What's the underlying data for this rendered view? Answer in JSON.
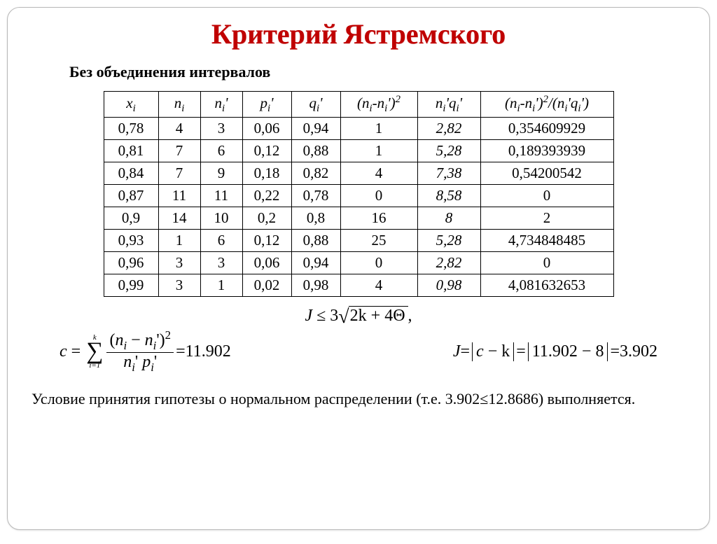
{
  "title": "Критерий Ястремского",
  "subtitle": "Без объединения интервалов",
  "table": {
    "headers": {
      "x": "xᵢ",
      "n": "nᵢ",
      "np": "nᵢ'",
      "p": "pᵢ'",
      "q": "qᵢ'",
      "d": "(nᵢ-nᵢ')²",
      "nq": "nᵢ'qᵢ'",
      "r": "(nᵢ-nᵢ')²/(nᵢ'qᵢ')"
    },
    "rows": [
      {
        "x": "0,78",
        "n": "4",
        "np": "3",
        "p": "0,06",
        "q": "0,94",
        "d": "1",
        "nq": "2,82",
        "r": "0,354609929"
      },
      {
        "x": "0,81",
        "n": "7",
        "np": "6",
        "p": "0,12",
        "q": "0,88",
        "d": "1",
        "nq": "5,28",
        "r": "0,189393939"
      },
      {
        "x": "0,84",
        "n": "7",
        "np": "9",
        "p": "0,18",
        "q": "0,82",
        "d": "4",
        "nq": "7,38",
        "r": "0,54200542"
      },
      {
        "x": "0,87",
        "n": "11",
        "np": "11",
        "p": "0,22",
        "q": "0,78",
        "d": "0",
        "nq": "8,58",
        "r": "0"
      },
      {
        "x": "0,9",
        "n": "14",
        "np": "10",
        "p": "0,2",
        "q": "0,8",
        "d": "16",
        "nq": "8",
        "r": "2"
      },
      {
        "x": "0,93",
        "n": "1",
        "np": "6",
        "p": "0,12",
        "q": "0,88",
        "d": "25",
        "nq": "5,28",
        "r": "4,734848485"
      },
      {
        "x": "0,96",
        "n": "3",
        "np": "3",
        "p": "0,06",
        "q": "0,94",
        "d": "0",
        "nq": "2,82",
        "r": "0"
      },
      {
        "x": "0,99",
        "n": "3",
        "np": "1",
        "p": "0,02",
        "q": "0,98",
        "d": "4",
        "nq": "0,98",
        "r": "4,081632653"
      }
    ],
    "col_widths": {
      "x": 78,
      "n": 60,
      "np": 60,
      "p": 70,
      "q": 70,
      "d": 110,
      "nq": 90,
      "r": 190
    },
    "border_color": "#000000",
    "font_size": 21
  },
  "formula_top": {
    "lhs": "J",
    "op": "≤",
    "rhs_coef": "3",
    "under_sqrt": "2k + 4Θ",
    "trail": ","
  },
  "formula_c": {
    "lhs": "c",
    "sum_lower": "i=1",
    "sum_upper": "k",
    "num": "(nᵢ − nᵢ')²",
    "den": "nᵢ' pᵢ'",
    "result": "11.902"
  },
  "formula_J": {
    "lhs": "J",
    "abs": "c − k",
    "expr": "11.902 − 8",
    "result": "3.902"
  },
  "conclusion": {
    "pre": "Условие принятия гипотезы о нормальном распределении (т.е. ",
    "ineq": "3.902≤12.8686",
    "post": ") выполняется."
  },
  "colors": {
    "title": "#c00000",
    "text": "#000000",
    "bg": "#ffffff",
    "frame": "#b7b7b7"
  }
}
